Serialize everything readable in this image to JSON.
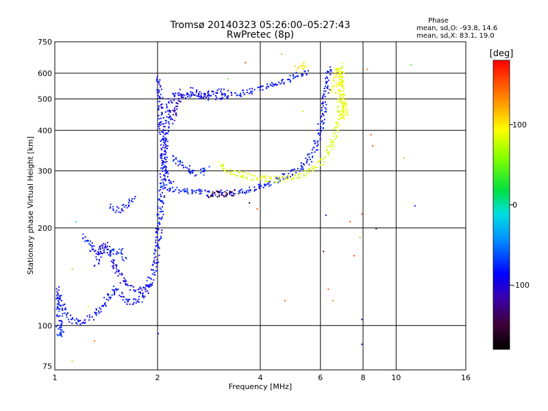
{
  "chart_data": {
    "type": "scatter",
    "title": "Tromsø 20140323 05:26:00–05:27:43",
    "subtitle": "RwPretec (8p)",
    "xlabel": "Frequency [MHz]",
    "ylabel": "Stationary phase Virtual Height [km]",
    "x_scale": "log",
    "y_scale": "log",
    "xlim": [
      1,
      16
    ],
    "ylim": [
      73,
      750
    ],
    "grid": true,
    "x_ticks": [
      1,
      2,
      4,
      6,
      8,
      10,
      16
    ],
    "x_tick_labels": [
      "1",
      "2",
      "4",
      "6",
      "8",
      "10",
      "16"
    ],
    "y_ticks": [
      75,
      100,
      200,
      300,
      400,
      500,
      600,
      750
    ],
    "y_tick_labels": [
      "75",
      "100",
      "200",
      "300",
      "400",
      "500",
      "600",
      "750"
    ],
    "annotation": {
      "title": "Phase",
      "line1": "mean, sd,O: -93.8, 14.6",
      "line2": "mean, sd,X: 83.1, 19.0"
    },
    "colorbar": {
      "label": "[deg]",
      "range": [
        -180,
        180
      ],
      "ticks": [
        100,
        0,
        -100
      ],
      "tick_labels": [
        "100",
        "0",
        "-100"
      ]
    },
    "traces": [
      {
        "phase": -95,
        "points": [
          [
            1.02,
            130
          ],
          [
            1.03,
            120
          ],
          [
            1.05,
            115
          ],
          [
            1.08,
            108
          ],
          [
            1.12,
            104
          ],
          [
            1.18,
            103
          ],
          [
            1.25,
            105
          ],
          [
            1.3,
            108
          ],
          [
            1.35,
            112
          ],
          [
            1.4,
            118
          ],
          [
            1.45,
            125
          ],
          [
            1.5,
            130
          ],
          [
            1.55,
            125
          ],
          [
            1.6,
            120
          ],
          [
            1.7,
            118
          ],
          [
            1.8,
            122
          ],
          [
            1.85,
            130
          ],
          [
            1.9,
            140
          ],
          [
            1.95,
            150
          ],
          [
            1.98,
            165
          ],
          [
            2.0,
            185
          ],
          [
            2.02,
            210
          ],
          [
            2.04,
            240
          ],
          [
            2.06,
            280
          ],
          [
            2.08,
            330
          ],
          [
            2.1,
            380
          ],
          [
            2.12,
            430
          ],
          [
            2.15,
            480
          ],
          [
            2.2,
            510
          ],
          [
            2.3,
            515
          ],
          [
            2.5,
            512
          ],
          [
            2.8,
            510
          ],
          [
            3.0,
            510
          ],
          [
            3.3,
            515
          ],
          [
            3.6,
            525
          ],
          [
            4.0,
            540
          ],
          [
            4.4,
            560
          ],
          [
            4.8,
            580
          ],
          [
            5.2,
            600
          ],
          [
            5.5,
            610
          ]
        ]
      },
      {
        "phase": -98,
        "points": [
          [
            2.0,
            580
          ],
          [
            2.02,
            540
          ],
          [
            2.03,
            500
          ],
          [
            2.04,
            450
          ],
          [
            2.05,
            420
          ],
          [
            2.06,
            380
          ],
          [
            2.07,
            340
          ],
          [
            2.08,
            310
          ],
          [
            2.1,
            290
          ],
          [
            2.12,
            280
          ],
          [
            2.15,
            275
          ],
          [
            2.2,
            272
          ]
        ]
      },
      {
        "phase": -100,
        "points": [
          [
            1.32,
            155
          ],
          [
            1.34,
            165
          ],
          [
            1.36,
            172
          ],
          [
            1.38,
            178
          ],
          [
            1.4,
            180
          ],
          [
            1.43,
            172
          ],
          [
            1.46,
            162
          ],
          [
            1.5,
            150
          ],
          [
            1.55,
            142
          ],
          [
            1.6,
            136
          ],
          [
            1.7,
            130
          ],
          [
            1.8,
            128
          ],
          [
            1.9,
            135
          ]
        ]
      },
      {
        "phase": -95,
        "points": [
          [
            1.45,
            235
          ],
          [
            1.5,
            230
          ],
          [
            1.55,
            228
          ],
          [
            1.6,
            232
          ],
          [
            1.65,
            240
          ],
          [
            1.7,
            250
          ]
        ]
      },
      {
        "phase": -90,
        "points": [
          [
            1.02,
            98
          ],
          [
            1.03,
            95
          ],
          [
            1.05,
            93
          ],
          [
            1.02,
            110
          ],
          [
            1.03,
            125
          ]
        ]
      },
      {
        "phase": -93,
        "points": [
          [
            2.05,
            270
          ],
          [
            2.1,
            268
          ],
          [
            2.2,
            265
          ],
          [
            2.3,
            262
          ],
          [
            2.5,
            260
          ],
          [
            2.7,
            258
          ],
          [
            3.0,
            257
          ],
          [
            3.3,
            258
          ],
          [
            3.6,
            262
          ],
          [
            3.9,
            268
          ],
          [
            4.2,
            275
          ],
          [
            4.5,
            283
          ],
          [
            4.8,
            292
          ],
          [
            5.1,
            302
          ],
          [
            5.3,
            312
          ],
          [
            5.5,
            325
          ],
          [
            5.7,
            345
          ],
          [
            5.85,
            370
          ],
          [
            5.95,
            400
          ],
          [
            6.05,
            440
          ],
          [
            6.15,
            490
          ],
          [
            6.25,
            550
          ],
          [
            6.3,
            600
          ],
          [
            6.35,
            630
          ]
        ]
      },
      {
        "phase": -90,
        "points": [
          [
            2.2,
            330
          ],
          [
            2.3,
            320
          ],
          [
            2.4,
            310
          ],
          [
            2.5,
            300
          ],
          [
            2.6,
            295
          ],
          [
            2.7,
            300
          ],
          [
            2.8,
            310
          ]
        ]
      },
      {
        "phase": 78,
        "points": [
          [
            3.05,
            320
          ],
          [
            3.1,
            310
          ],
          [
            3.2,
            300
          ],
          [
            3.4,
            295
          ],
          [
            3.7,
            290
          ],
          [
            4.0,
            286
          ],
          [
            4.3,
            284
          ],
          [
            4.6,
            285
          ],
          [
            4.9,
            288
          ],
          [
            5.2,
            293
          ],
          [
            5.5,
            300
          ],
          [
            5.8,
            310
          ],
          [
            6.0,
            320
          ],
          [
            6.2,
            335
          ],
          [
            6.4,
            355
          ],
          [
            6.55,
            380
          ],
          [
            6.7,
            410
          ],
          [
            6.8,
            450
          ],
          [
            6.85,
            500
          ],
          [
            6.88,
            550
          ],
          [
            6.9,
            600
          ],
          [
            6.9,
            640
          ]
        ]
      },
      {
        "phase": 90,
        "points": [
          [
            6.5,
            520
          ],
          [
            6.6,
            560
          ],
          [
            6.7,
            600
          ],
          [
            6.75,
            630
          ],
          [
            7.0,
            470
          ],
          [
            7.05,
            440
          ],
          [
            6.95,
            500
          ]
        ]
      },
      {
        "phase": 100,
        "points": [
          [
            5.1,
            620
          ],
          [
            5.3,
            640
          ],
          [
            5.5,
            630
          ]
        ]
      },
      {
        "phase": -110,
        "points": [
          [
            2.2,
            430
          ],
          [
            2.25,
            460
          ],
          [
            2.3,
            500
          ],
          [
            2.35,
            530
          ]
        ]
      },
      {
        "phase": -100,
        "points": [
          [
            2.5,
            540
          ],
          [
            2.6,
            520
          ],
          [
            2.7,
            515
          ],
          [
            2.8,
            520
          ],
          [
            2.9,
            525
          ],
          [
            3.0,
            530
          ],
          [
            3.2,
            525
          ]
        ]
      },
      {
        "phase": -150,
        "points": [
          [
            2.8,
            255
          ],
          [
            3.0,
            255
          ],
          [
            3.2,
            256
          ],
          [
            3.4,
            258
          ]
        ]
      },
      {
        "phase": -90,
        "points": [
          [
            1.2,
            190
          ],
          [
            1.25,
            180
          ],
          [
            1.3,
            170
          ],
          [
            1.55,
            170
          ],
          [
            1.6,
            160
          ]
        ]
      }
    ],
    "scattered_points": [
      {
        "x": 1.12,
        "y": 78,
        "phase": 50
      },
      {
        "x": 1.3,
        "y": 90,
        "phase": 140
      },
      {
        "x": 2.0,
        "y": 95,
        "phase": -100
      },
      {
        "x": 4.6,
        "y": 690,
        "phase": 30
      },
      {
        "x": 4.7,
        "y": 120,
        "phase": 150
      },
      {
        "x": 5.3,
        "y": 460,
        "phase": 60
      },
      {
        "x": 6.3,
        "y": 130,
        "phase": 150
      },
      {
        "x": 6.5,
        "y": 120,
        "phase": 130
      },
      {
        "x": 6.1,
        "y": 170,
        "phase": -150
      },
      {
        "x": 6.2,
        "y": 220,
        "phase": -100
      },
      {
        "x": 7.3,
        "y": 210,
        "phase": 150
      },
      {
        "x": 7.5,
        "y": 165,
        "phase": 160
      },
      {
        "x": 7.9,
        "y": 88,
        "phase": -100
      },
      {
        "x": 7.9,
        "y": 105,
        "phase": -100
      },
      {
        "x": 7.8,
        "y": 188,
        "phase": 120
      },
      {
        "x": 7.9,
        "y": 222,
        "phase": 150
      },
      {
        "x": 8.2,
        "y": 620,
        "phase": 140
      },
      {
        "x": 8.4,
        "y": 390,
        "phase": 160
      },
      {
        "x": 8.5,
        "y": 360,
        "phase": 150
      },
      {
        "x": 8.7,
        "y": 200,
        "phase": -170
      },
      {
        "x": 10.5,
        "y": 330,
        "phase": 40
      },
      {
        "x": 11.0,
        "y": 640,
        "phase": 30
      },
      {
        "x": 11.3,
        "y": 235,
        "phase": -100
      },
      {
        "x": 3.7,
        "y": 240,
        "phase": -170
      },
      {
        "x": 3.9,
        "y": 230,
        "phase": 150
      },
      {
        "x": 3.2,
        "y": 580,
        "phase": 30
      },
      {
        "x": 3.6,
        "y": 650,
        "phase": 160
      },
      {
        "x": 1.15,
        "y": 210,
        "phase": -30
      },
      {
        "x": 1.12,
        "y": 150,
        "phase": 40
      },
      {
        "x": 1.25,
        "y": 115,
        "phase": 100
      }
    ]
  }
}
